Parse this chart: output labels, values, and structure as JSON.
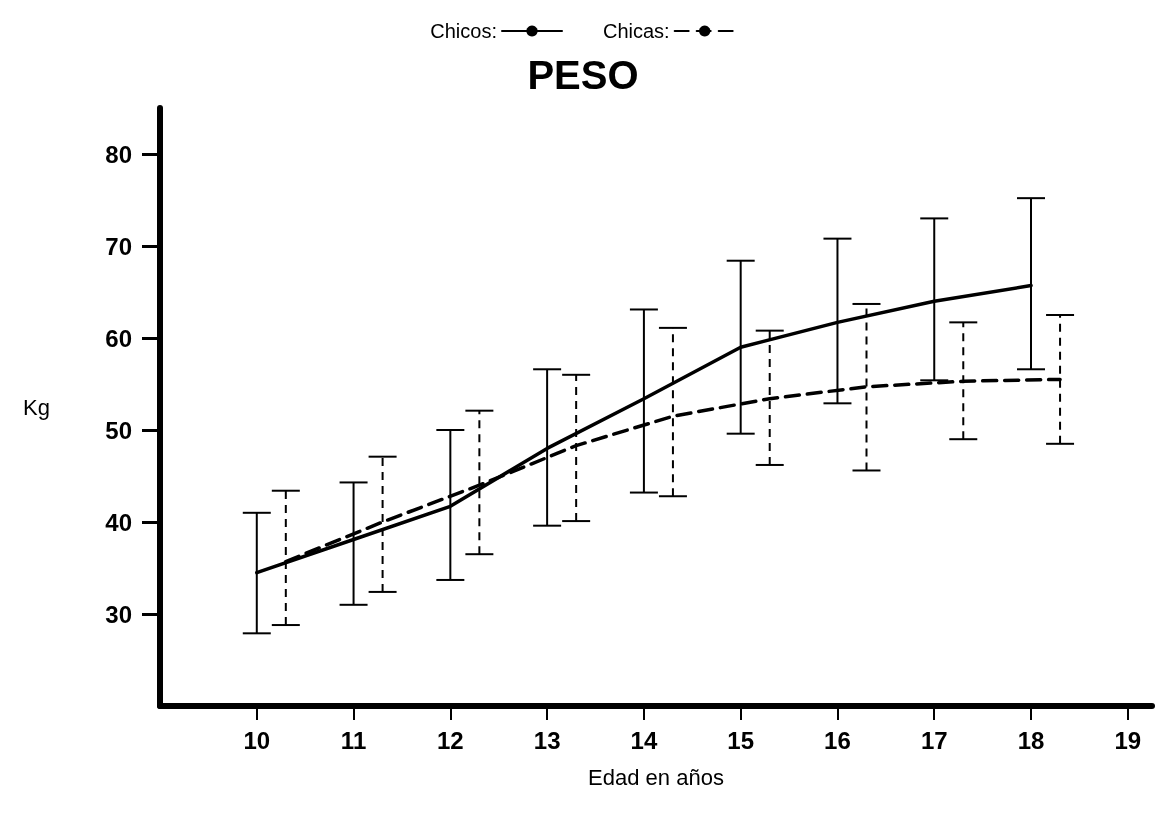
{
  "chart_data": {
    "type": "line",
    "title": "PESO",
    "xlabel": "Edad en años",
    "ylabel": "Kg",
    "xlim": [
      9,
      19.25
    ],
    "ylim": [
      20,
      85
    ],
    "xticks": [
      10,
      11,
      12,
      13,
      14,
      15,
      16,
      17,
      18,
      19
    ],
    "yticks": [
      30,
      40,
      50,
      60,
      70,
      80
    ],
    "grid": false,
    "legend": "top",
    "marker": "none",
    "series": [
      {
        "name": "Chicos:",
        "color": "#000000",
        "line_style": "solid",
        "x": [
          10,
          11,
          12,
          13,
          14,
          15,
          16,
          17,
          18
        ],
        "values": [
          34.5,
          38.1,
          41.7,
          48,
          53.4,
          59,
          61.7,
          64,
          65.7
        ],
        "errors": [
          [
            27.9,
            41
          ],
          [
            31,
            44.3
          ],
          [
            33.7,
            50
          ],
          [
            39.6,
            56.6
          ],
          [
            43.2,
            63.1
          ],
          [
            49.6,
            68.4
          ],
          [
            52.9,
            70.8
          ],
          [
            55.4,
            73
          ],
          [
            56.6,
            75.2
          ]
        ]
      },
      {
        "name": "Chicas:",
        "color": "#000000",
        "line_style": "dashed",
        "x": [
          10.3,
          11.3,
          12.3,
          13.3,
          14.3,
          15.3,
          16.3,
          17.3,
          18.3
        ],
        "values": [
          35.7,
          40,
          44,
          48.3,
          51.5,
          53.4,
          54.7,
          55.3,
          55.5
        ],
        "errors": [
          [
            28.8,
            43.4
          ],
          [
            32.4,
            47.1
          ],
          [
            36.5,
            52.1
          ],
          [
            40.1,
            56
          ],
          [
            42.8,
            61.1
          ],
          [
            46.2,
            60.8
          ],
          [
            45.6,
            63.7
          ],
          [
            49,
            61.7
          ],
          [
            48.5,
            62.5
          ]
        ]
      }
    ]
  }
}
